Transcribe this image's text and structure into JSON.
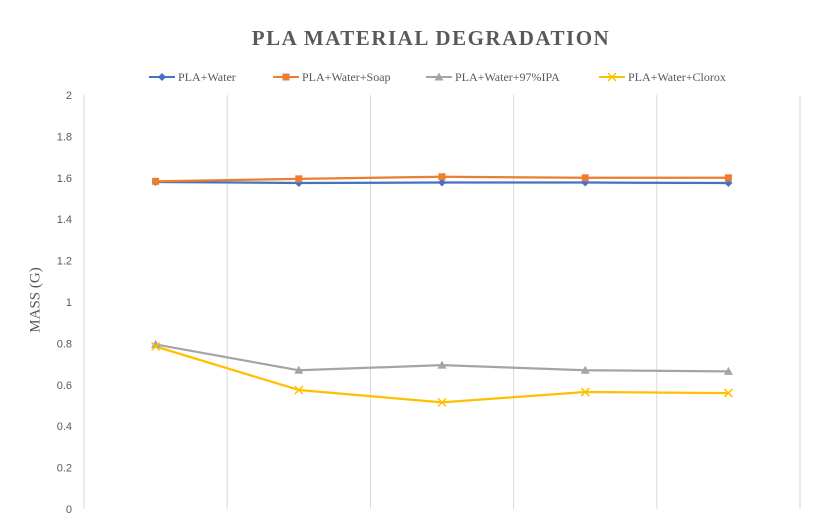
{
  "chart_data": {
    "type": "line",
    "title": "PLA MATERIAL DEGRADATION",
    "xlabel": "",
    "ylabel": "MASS (G)",
    "categories": [
      "",
      "",
      "",
      "",
      ""
    ],
    "ylim": [
      0,
      2
    ],
    "yticks": [
      "0",
      "0.2",
      "0.4",
      "0.6",
      "0.8",
      "1",
      "1.2",
      "1.4",
      "1.6",
      "1.8",
      "2"
    ],
    "grid": "vertical",
    "legend_position": "top",
    "series": [
      {
        "name": "PLA+Water",
        "color": "#4472C4",
        "marker": "diamond",
        "values": [
          1.58,
          1.575,
          1.577,
          1.577,
          1.575
        ]
      },
      {
        "name": "PLA+Water+Soap",
        "color": "#ED7D31",
        "marker": "square",
        "values": [
          1.583,
          1.595,
          1.605,
          1.6,
          1.6
        ]
      },
      {
        "name": "PLA+Water+97%IPA",
        "color": "#A5A5A5",
        "marker": "triangle",
        "values": [
          0.795,
          0.67,
          0.695,
          0.67,
          0.665
        ]
      },
      {
        "name": "PLA+Water+Clorox",
        "color": "#FFC000",
        "marker": "x",
        "values": [
          0.785,
          0.575,
          0.515,
          0.565,
          0.56
        ]
      }
    ]
  }
}
